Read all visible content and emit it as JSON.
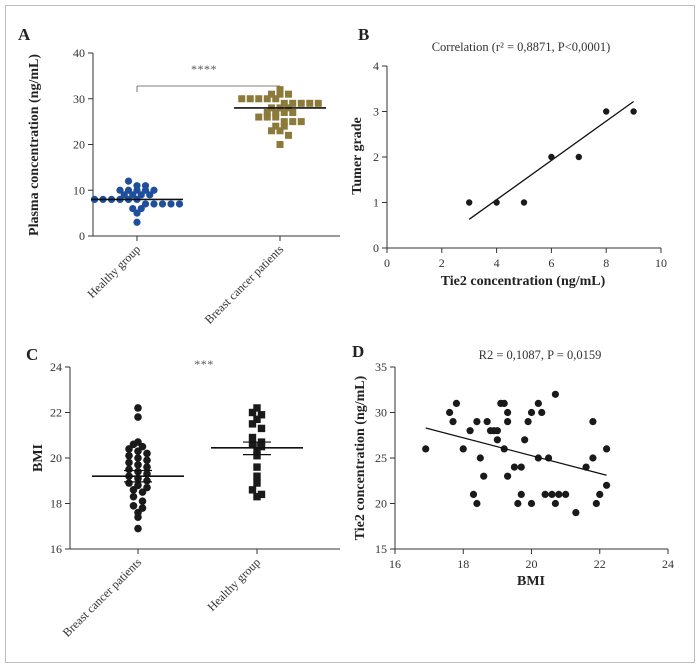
{
  "panel_letters": [
    "A",
    "B",
    "C",
    "D"
  ],
  "colors": {
    "healthy_A": "#1f4e9c",
    "cancer_A": "#8c7a3a",
    "markers": "#1a1a1a",
    "axis": "#333333",
    "frame": "#bdbdbd"
  },
  "chart_data": [
    {
      "panel": "A",
      "type": "scatter",
      "ylabel": "Plasma concentration (ng/mL)",
      "ylim": [
        0,
        40
      ],
      "yticks": [
        0,
        10,
        20,
        30,
        40
      ],
      "categories": [
        "Healthy group",
        "Breast cancer patients"
      ],
      "significance": "****",
      "series": [
        {
          "category": "Healthy group",
          "marker": "circle",
          "mean": 8,
          "values": [
            12,
            11,
            11,
            10,
            10,
            10,
            10,
            10,
            9,
            9,
            9,
            9,
            8,
            8,
            8,
            8,
            8,
            8,
            7,
            7,
            7,
            7,
            7,
            6,
            6,
            5,
            3
          ]
        },
        {
          "category": "Breast cancer patients",
          "marker": "square",
          "mean": 28,
          "values": [
            32,
            31,
            31,
            31,
            30,
            30,
            30,
            30,
            30,
            29,
            29,
            29,
            29,
            29,
            28,
            28,
            28,
            27,
            27,
            27,
            27,
            26,
            26,
            26,
            25,
            25,
            25,
            24,
            24,
            23,
            23,
            22,
            20
          ]
        }
      ]
    },
    {
      "panel": "B",
      "type": "scatter",
      "title": "Correlation (r² = 0,8871, P<0,0001)",
      "xlabel": "Tie2 concentration (ng/mL)",
      "ylabel": "Tumer grade",
      "xlim": [
        0,
        10
      ],
      "ylim": [
        0,
        4
      ],
      "xticks": [
        0,
        2,
        4,
        6,
        8,
        10
      ],
      "yticks": [
        0,
        1,
        2,
        3,
        4
      ],
      "points": [
        [
          3,
          1
        ],
        [
          4,
          1
        ],
        [
          5,
          1
        ],
        [
          6,
          2
        ],
        [
          7,
          2
        ],
        [
          8,
          3
        ],
        [
          9,
          3
        ]
      ],
      "fit_line": [
        [
          3,
          0.63
        ],
        [
          9,
          3.22
        ]
      ]
    },
    {
      "panel": "C",
      "type": "scatter",
      "ylabel": "BMI",
      "ylim": [
        16,
        24
      ],
      "yticks": [
        16,
        18,
        20,
        22,
        24
      ],
      "categories": [
        "Breast cancer patients",
        "Healthy group"
      ],
      "significance": "***",
      "series": [
        {
          "category": "Breast cancer patients",
          "marker": "circle",
          "mean": 19.2,
          "sem": [
            18.95,
            19.45
          ],
          "values": [
            22.2,
            21.8,
            20.7,
            20.6,
            20.5,
            20.4,
            20.3,
            20.2,
            20.1,
            20.0,
            19.9,
            19.8,
            19.7,
            19.6,
            19.5,
            19.4,
            19.3,
            19.2,
            19.1,
            19.0,
            18.9,
            18.8,
            18.7,
            18.6,
            18.5,
            18.3,
            18.1,
            17.9,
            17.8,
            17.6,
            17.4,
            16.9
          ]
        },
        {
          "category": "Healthy group",
          "marker": "square",
          "mean": 20.45,
          "sem": [
            20.15,
            20.7
          ],
          "values": [
            22.2,
            22.0,
            21.9,
            21.7,
            21.5,
            21.3,
            20.9,
            20.7,
            20.6,
            20.5,
            20.3,
            20.1,
            19.6,
            19.2,
            18.9,
            18.6,
            18.4,
            18.3
          ]
        }
      ]
    },
    {
      "panel": "D",
      "type": "scatter",
      "title": "R2 = 0,1087, P = 0,0159",
      "xlabel": "BMI",
      "ylabel": "Tie2 concentration (ng/mL)",
      "xlim": [
        16,
        24
      ],
      "ylim": [
        15,
        35
      ],
      "xticks": [
        16,
        18,
        20,
        22,
        24
      ],
      "yticks": [
        15,
        20,
        25,
        30,
        35
      ],
      "points": [
        [
          16.9,
          26
        ],
        [
          17.6,
          30
        ],
        [
          17.7,
          29
        ],
        [
          17.8,
          31
        ],
        [
          18.0,
          26
        ],
        [
          18.2,
          28
        ],
        [
          18.3,
          21
        ],
        [
          18.4,
          20
        ],
        [
          18.4,
          29
        ],
        [
          18.5,
          25
        ],
        [
          18.6,
          23
        ],
        [
          18.7,
          29
        ],
        [
          18.8,
          28
        ],
        [
          18.9,
          28
        ],
        [
          19.0,
          27
        ],
        [
          19.0,
          28
        ],
        [
          19.1,
          31
        ],
        [
          19.2,
          31
        ],
        [
          19.2,
          26
        ],
        [
          19.3,
          30
        ],
        [
          19.3,
          29
        ],
        [
          19.3,
          23
        ],
        [
          19.5,
          24
        ],
        [
          19.6,
          20
        ],
        [
          19.7,
          24
        ],
        [
          19.7,
          21
        ],
        [
          19.8,
          27
        ],
        [
          19.9,
          29
        ],
        [
          20.0,
          30
        ],
        [
          20.0,
          20
        ],
        [
          20.2,
          31
        ],
        [
          20.2,
          25
        ],
        [
          20.3,
          30
        ],
        [
          20.4,
          21
        ],
        [
          20.5,
          25
        ],
        [
          20.6,
          21
        ],
        [
          20.7,
          32
        ],
        [
          20.7,
          20
        ],
        [
          20.8,
          21
        ],
        [
          21.0,
          21
        ],
        [
          21.3,
          19
        ],
        [
          21.6,
          24
        ],
        [
          21.8,
          29
        ],
        [
          21.8,
          25
        ],
        [
          21.9,
          20
        ],
        [
          22.0,
          21
        ],
        [
          22.2,
          26
        ],
        [
          22.2,
          22
        ]
      ],
      "fit_line": [
        [
          16.9,
          28.3
        ],
        [
          22.2,
          23.1
        ]
      ]
    }
  ]
}
